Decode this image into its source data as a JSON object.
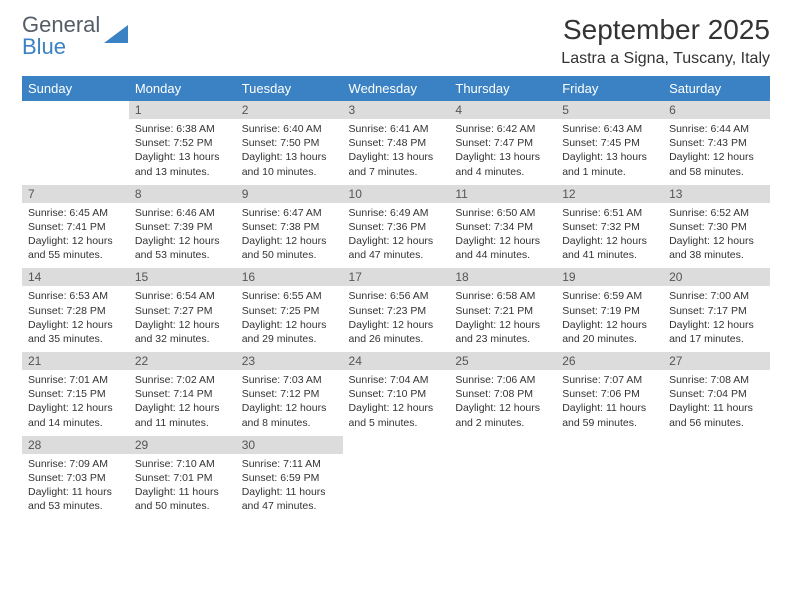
{
  "logo": {
    "word1": "General",
    "word2": "Blue"
  },
  "title": "September 2025",
  "location": "Lastra a Signa, Tuscany, Italy",
  "colors": {
    "header_bg": "#3b82c4",
    "header_text": "#ffffff",
    "daynum_bg": "#dcdcdc",
    "rule": "#3b6fa0",
    "text": "#333333"
  },
  "day_names": [
    "Sunday",
    "Monday",
    "Tuesday",
    "Wednesday",
    "Thursday",
    "Friday",
    "Saturday"
  ],
  "weeks": [
    [
      null,
      {
        "n": "1",
        "sr": "6:38 AM",
        "ss": "7:52 PM",
        "dl": "13 hours and 13 minutes."
      },
      {
        "n": "2",
        "sr": "6:40 AM",
        "ss": "7:50 PM",
        "dl": "13 hours and 10 minutes."
      },
      {
        "n": "3",
        "sr": "6:41 AM",
        "ss": "7:48 PM",
        "dl": "13 hours and 7 minutes."
      },
      {
        "n": "4",
        "sr": "6:42 AM",
        "ss": "7:47 PM",
        "dl": "13 hours and 4 minutes."
      },
      {
        "n": "5",
        "sr": "6:43 AM",
        "ss": "7:45 PM",
        "dl": "13 hours and 1 minute."
      },
      {
        "n": "6",
        "sr": "6:44 AM",
        "ss": "7:43 PM",
        "dl": "12 hours and 58 minutes."
      }
    ],
    [
      {
        "n": "7",
        "sr": "6:45 AM",
        "ss": "7:41 PM",
        "dl": "12 hours and 55 minutes."
      },
      {
        "n": "8",
        "sr": "6:46 AM",
        "ss": "7:39 PM",
        "dl": "12 hours and 53 minutes."
      },
      {
        "n": "9",
        "sr": "6:47 AM",
        "ss": "7:38 PM",
        "dl": "12 hours and 50 minutes."
      },
      {
        "n": "10",
        "sr": "6:49 AM",
        "ss": "7:36 PM",
        "dl": "12 hours and 47 minutes."
      },
      {
        "n": "11",
        "sr": "6:50 AM",
        "ss": "7:34 PM",
        "dl": "12 hours and 44 minutes."
      },
      {
        "n": "12",
        "sr": "6:51 AM",
        "ss": "7:32 PM",
        "dl": "12 hours and 41 minutes."
      },
      {
        "n": "13",
        "sr": "6:52 AM",
        "ss": "7:30 PM",
        "dl": "12 hours and 38 minutes."
      }
    ],
    [
      {
        "n": "14",
        "sr": "6:53 AM",
        "ss": "7:28 PM",
        "dl": "12 hours and 35 minutes."
      },
      {
        "n": "15",
        "sr": "6:54 AM",
        "ss": "7:27 PM",
        "dl": "12 hours and 32 minutes."
      },
      {
        "n": "16",
        "sr": "6:55 AM",
        "ss": "7:25 PM",
        "dl": "12 hours and 29 minutes."
      },
      {
        "n": "17",
        "sr": "6:56 AM",
        "ss": "7:23 PM",
        "dl": "12 hours and 26 minutes."
      },
      {
        "n": "18",
        "sr": "6:58 AM",
        "ss": "7:21 PM",
        "dl": "12 hours and 23 minutes."
      },
      {
        "n": "19",
        "sr": "6:59 AM",
        "ss": "7:19 PM",
        "dl": "12 hours and 20 minutes."
      },
      {
        "n": "20",
        "sr": "7:00 AM",
        "ss": "7:17 PM",
        "dl": "12 hours and 17 minutes."
      }
    ],
    [
      {
        "n": "21",
        "sr": "7:01 AM",
        "ss": "7:15 PM",
        "dl": "12 hours and 14 minutes."
      },
      {
        "n": "22",
        "sr": "7:02 AM",
        "ss": "7:14 PM",
        "dl": "12 hours and 11 minutes."
      },
      {
        "n": "23",
        "sr": "7:03 AM",
        "ss": "7:12 PM",
        "dl": "12 hours and 8 minutes."
      },
      {
        "n": "24",
        "sr": "7:04 AM",
        "ss": "7:10 PM",
        "dl": "12 hours and 5 minutes."
      },
      {
        "n": "25",
        "sr": "7:06 AM",
        "ss": "7:08 PM",
        "dl": "12 hours and 2 minutes."
      },
      {
        "n": "26",
        "sr": "7:07 AM",
        "ss": "7:06 PM",
        "dl": "11 hours and 59 minutes."
      },
      {
        "n": "27",
        "sr": "7:08 AM",
        "ss": "7:04 PM",
        "dl": "11 hours and 56 minutes."
      }
    ],
    [
      {
        "n": "28",
        "sr": "7:09 AM",
        "ss": "7:03 PM",
        "dl": "11 hours and 53 minutes."
      },
      {
        "n": "29",
        "sr": "7:10 AM",
        "ss": "7:01 PM",
        "dl": "11 hours and 50 minutes."
      },
      {
        "n": "30",
        "sr": "7:11 AM",
        "ss": "6:59 PM",
        "dl": "11 hours and 47 minutes."
      },
      null,
      null,
      null,
      null
    ]
  ],
  "labels": {
    "sunrise": "Sunrise:",
    "sunset": "Sunset:",
    "daylight": "Daylight:"
  }
}
